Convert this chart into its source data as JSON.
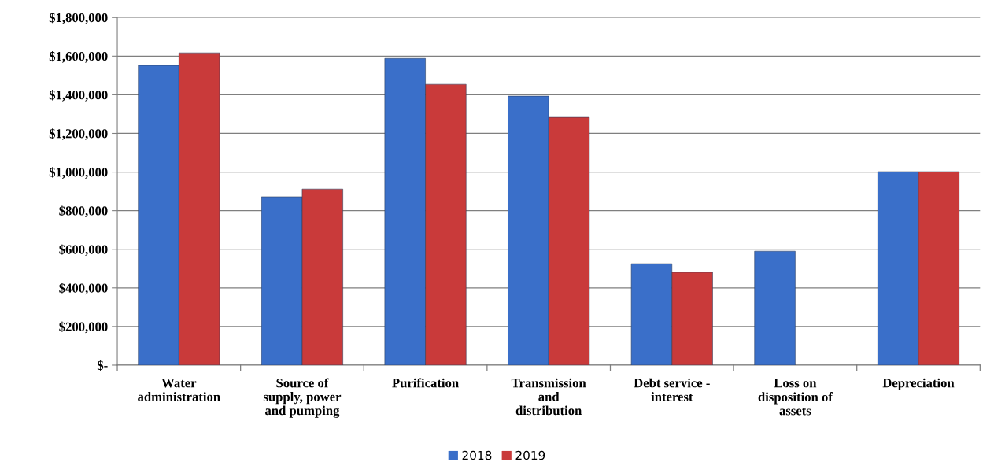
{
  "chart_data": {
    "type": "bar",
    "categories": [
      "Water\nadministration",
      "Source of\nsupply, power\nand pumping",
      "Purification",
      "Transmission\nand\ndistribution",
      "Debt service -\ninterest",
      "Loss on\ndisposition of\nassets",
      "Depreciation"
    ],
    "series": [
      {
        "name": "2018",
        "color": "#3a6fc9",
        "values": [
          1552000,
          872000,
          1588000,
          1393000,
          525000,
          590000,
          1002000
        ]
      },
      {
        "name": "2019",
        "color": "#c93a3a",
        "values": [
          1617000,
          912000,
          1454000,
          1283000,
          481000,
          null,
          1002000
        ]
      }
    ],
    "ylim": [
      0,
      1800000
    ],
    "yticks": [
      {
        "value": 0,
        "label": "$-"
      },
      {
        "value": 200000,
        "label": "$200,000"
      },
      {
        "value": 400000,
        "label": "$400,000"
      },
      {
        "value": 600000,
        "label": "$600,000"
      },
      {
        "value": 800000,
        "label": "$800,000"
      },
      {
        "value": 1000000,
        "label": "$1,000,000"
      },
      {
        "value": 1200000,
        "label": "$1,200,000"
      },
      {
        "value": 1400000,
        "label": "$1,400,000"
      },
      {
        "value": 1600000,
        "label": "$1,600,000"
      },
      {
        "value": 1800000,
        "label": "$1,800,000"
      }
    ],
    "grid": "y",
    "legend": "bottom"
  }
}
